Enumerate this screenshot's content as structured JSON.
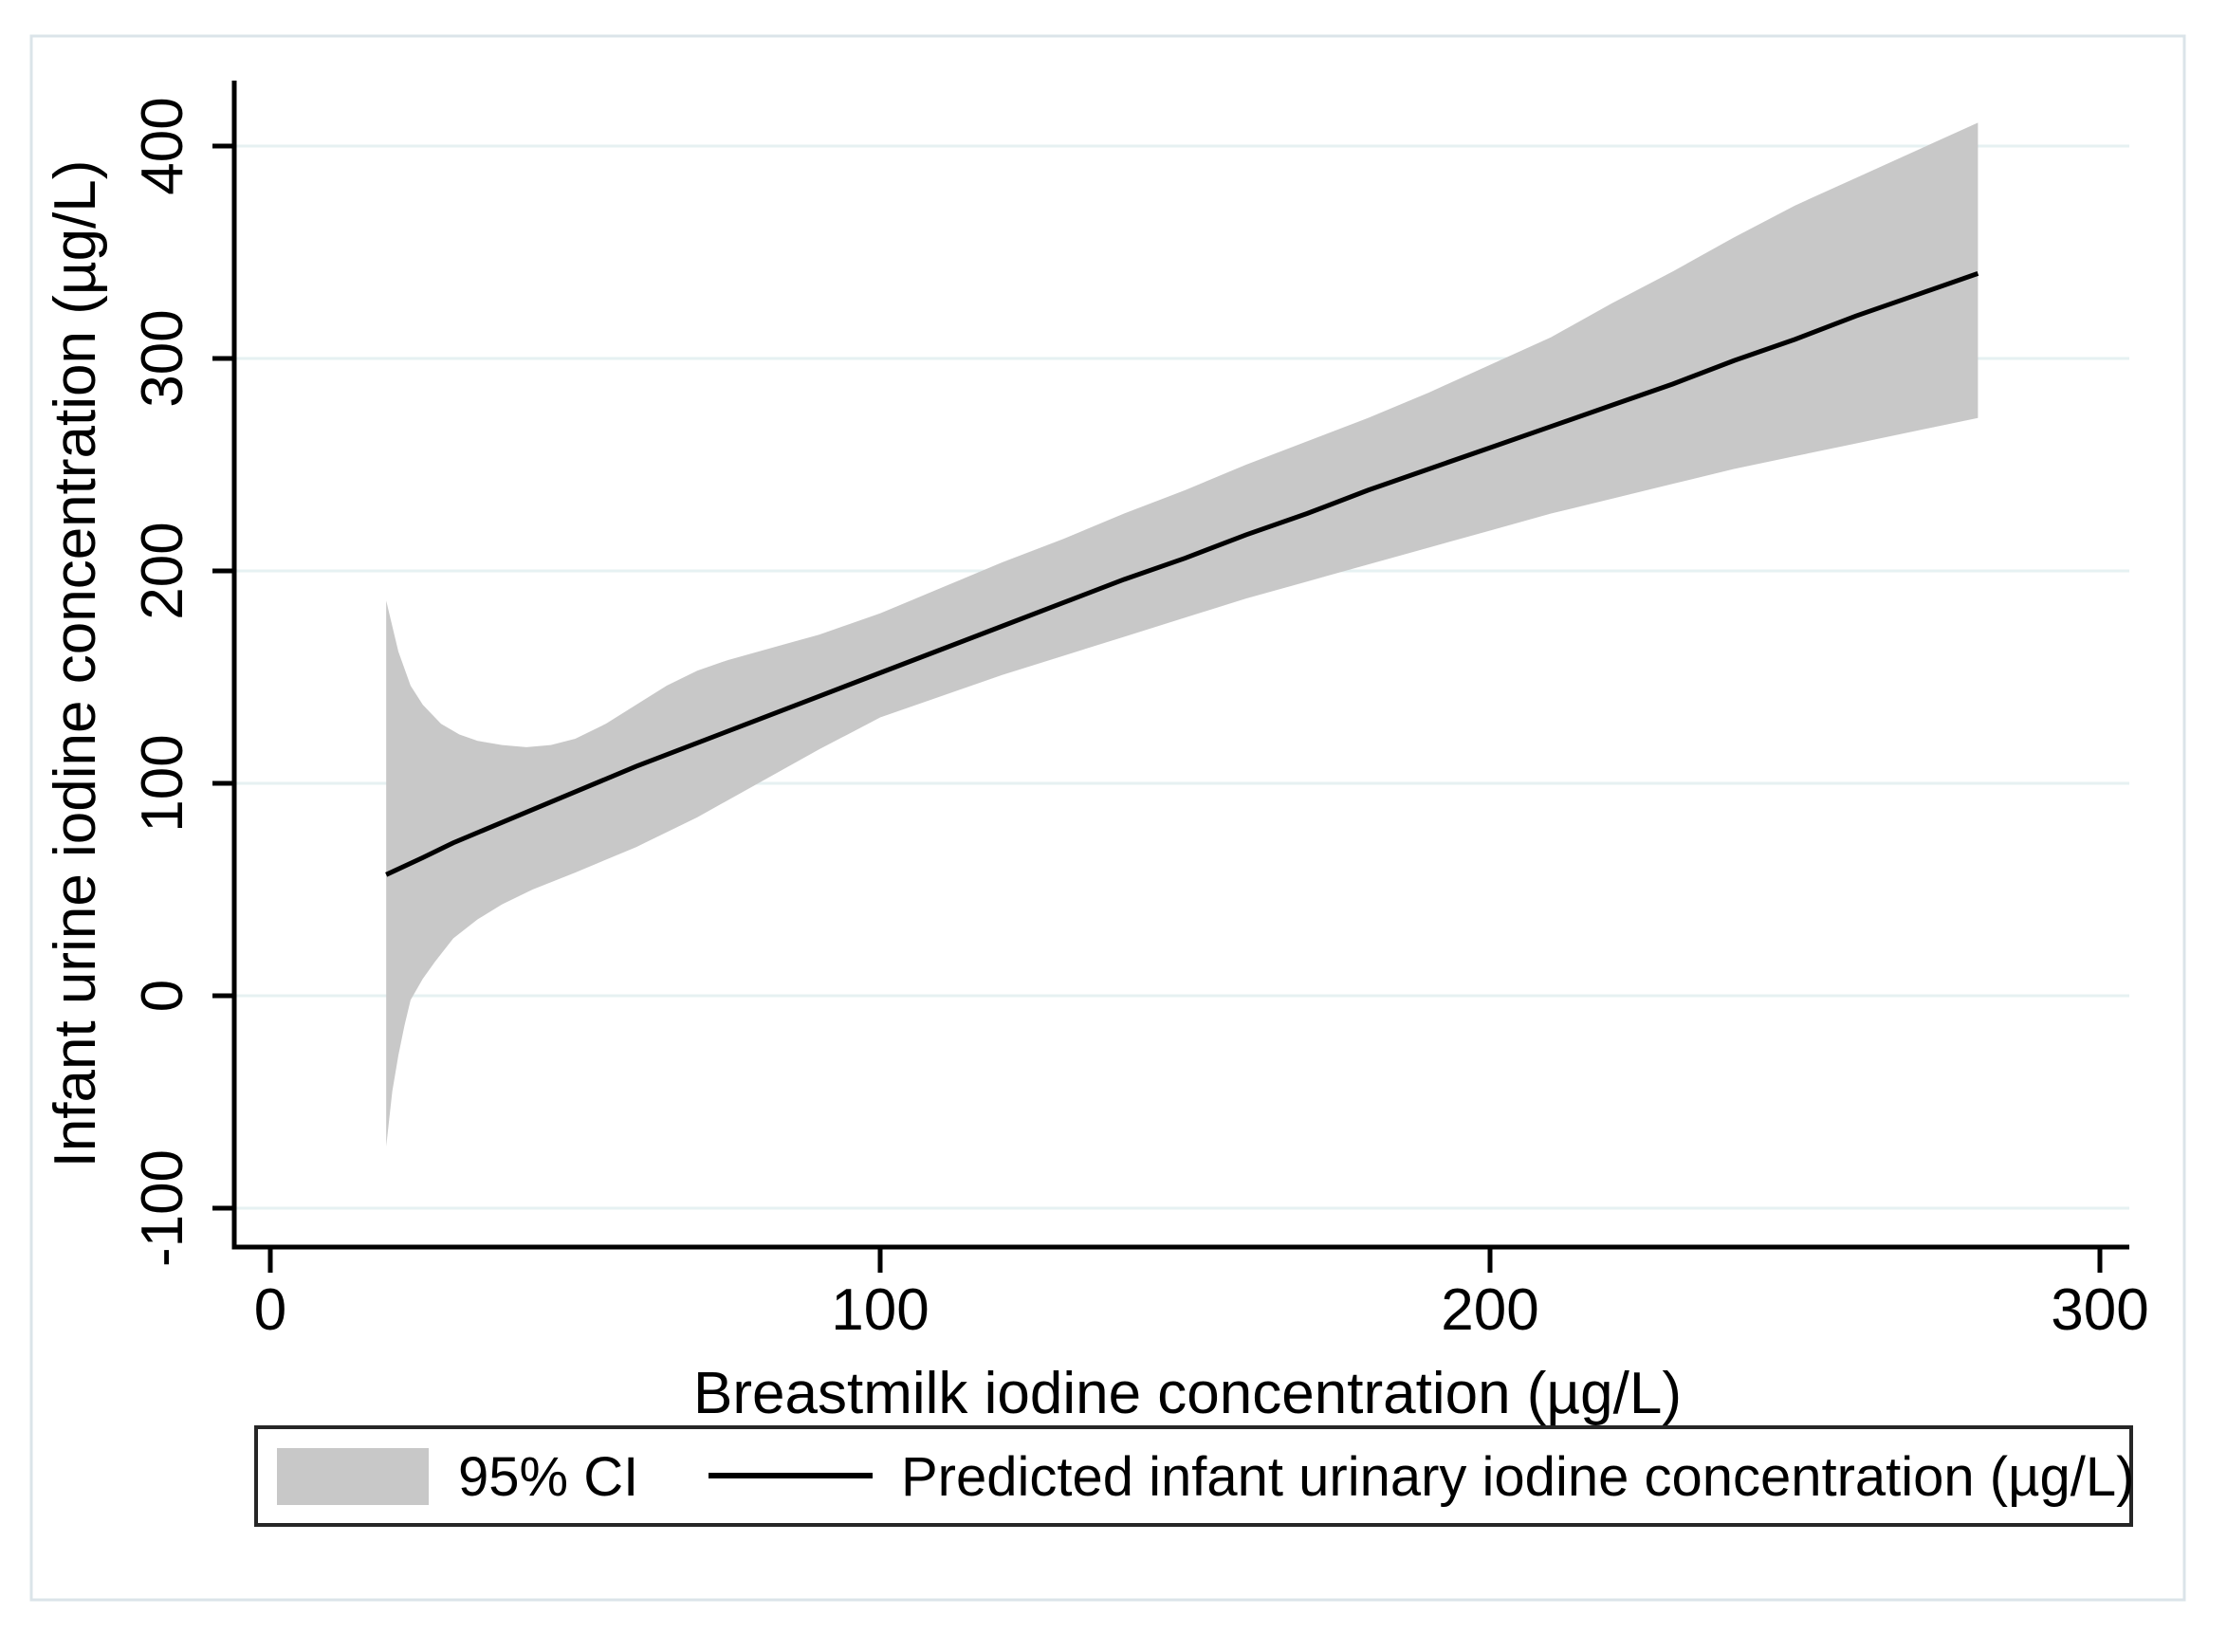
{
  "figure": {
    "background": "#ffffff",
    "border_color": "#dbe4e9",
    "plot_background": "#ffffff"
  },
  "chart_data": {
    "type": "line",
    "subtype": "regression-fit-with-confidence-band",
    "title": "",
    "xlabel": "Breastmilk iodine concentration (µg/L)",
    "ylabel": "Infant urine iodine concentration (µg/L)",
    "xlim": [
      -6,
      305
    ],
    "ylim": [
      -118,
      431
    ],
    "xticks": [
      0,
      100,
      200,
      300
    ],
    "yticks": [
      -100,
      0,
      100,
      200,
      300,
      400
    ],
    "grid": "horizontal-only",
    "grid_color": "#e6f1f2",
    "axis_color": "#000000",
    "band_color": "#c8c8c8",
    "line_color": "#000000",
    "legend": {
      "position": "bottom-center",
      "border_color": "#262626",
      "entries": [
        {
          "swatch": "area",
          "label": "95% CI"
        },
        {
          "swatch": "line",
          "label": "Predicted infant urinary iodine concentration (µg/L)"
        }
      ]
    },
    "series": [
      {
        "name": "95% CI",
        "type": "band",
        "upper": [
          [
            19,
            186
          ],
          [
            21,
            162
          ],
          [
            23,
            146
          ],
          [
            25,
            137
          ],
          [
            28,
            128
          ],
          [
            31,
            123
          ],
          [
            34,
            120
          ],
          [
            38,
            118
          ],
          [
            42,
            117
          ],
          [
            46,
            118
          ],
          [
            50,
            121
          ],
          [
            55,
            128
          ],
          [
            60,
            137
          ],
          [
            65,
            146
          ],
          [
            70,
            153
          ],
          [
            75,
            158
          ],
          [
            80,
            162
          ],
          [
            85,
            166
          ],
          [
            90,
            170
          ],
          [
            95,
            175
          ],
          [
            100,
            180
          ],
          [
            110,
            192
          ],
          [
            120,
            204
          ],
          [
            130,
            215
          ],
          [
            140,
            227
          ],
          [
            150,
            238
          ],
          [
            160,
            250
          ],
          [
            170,
            261
          ],
          [
            180,
            272
          ],
          [
            190,
            284
          ],
          [
            200,
            297
          ],
          [
            210,
            310
          ],
          [
            220,
            326
          ],
          [
            230,
            341
          ],
          [
            240,
            357
          ],
          [
            250,
            372
          ],
          [
            260,
            385
          ],
          [
            270,
            398
          ],
          [
            280,
            411
          ]
        ],
        "lower": [
          [
            19,
            -71
          ],
          [
            20,
            -45
          ],
          [
            21,
            -28
          ],
          [
            22,
            -14
          ],
          [
            23,
            -2
          ],
          [
            25,
            8
          ],
          [
            27,
            16
          ],
          [
            30,
            27
          ],
          [
            34,
            36
          ],
          [
            38,
            43
          ],
          [
            43,
            50
          ],
          [
            50,
            58
          ],
          [
            60,
            70
          ],
          [
            70,
            84
          ],
          [
            80,
            100
          ],
          [
            90,
            116
          ],
          [
            100,
            131
          ],
          [
            110,
            141
          ],
          [
            120,
            151
          ],
          [
            130,
            160
          ],
          [
            140,
            169
          ],
          [
            150,
            178
          ],
          [
            160,
            187
          ],
          [
            170,
            195
          ],
          [
            180,
            203
          ],
          [
            190,
            211
          ],
          [
            200,
            219
          ],
          [
            210,
            227
          ],
          [
            220,
            234
          ],
          [
            230,
            241
          ],
          [
            240,
            248
          ],
          [
            250,
            254
          ],
          [
            260,
            260
          ],
          [
            270,
            266
          ],
          [
            280,
            272
          ]
        ]
      },
      {
        "name": "Predicted infant urinary iodine concentration (µg/L)",
        "type": "line",
        "points": [
          [
            19,
            57
          ],
          [
            25,
            65
          ],
          [
            30,
            72
          ],
          [
            40,
            84
          ],
          [
            50,
            96
          ],
          [
            60,
            108
          ],
          [
            70,
            119
          ],
          [
            80,
            130
          ],
          [
            90,
            141
          ],
          [
            100,
            152
          ],
          [
            110,
            163
          ],
          [
            120,
            174
          ],
          [
            130,
            185
          ],
          [
            140,
            196
          ],
          [
            150,
            206
          ],
          [
            160,
            217
          ],
          [
            170,
            227
          ],
          [
            180,
            238
          ],
          [
            190,
            248
          ],
          [
            200,
            258
          ],
          [
            210,
            268
          ],
          [
            220,
            278
          ],
          [
            230,
            288
          ],
          [
            240,
            299
          ],
          [
            250,
            309
          ],
          [
            260,
            320
          ],
          [
            270,
            330
          ],
          [
            280,
            340
          ]
        ]
      }
    ]
  }
}
